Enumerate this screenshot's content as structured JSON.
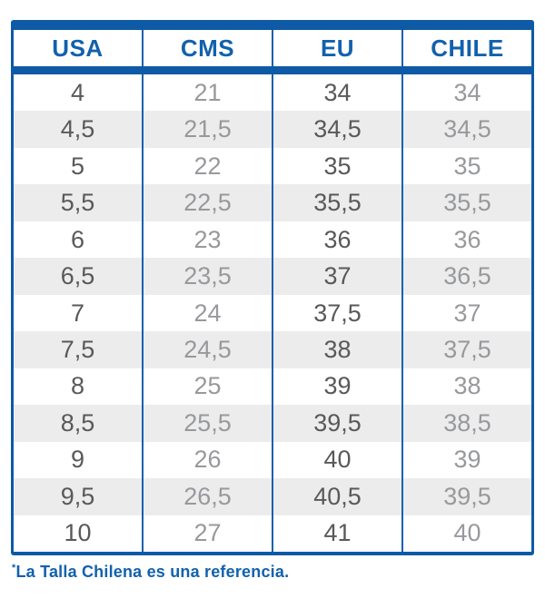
{
  "colors": {
    "accent_blue": "#0E5AA6",
    "header_text_blue": "#1261AC",
    "primary_value_gray": "#58595B",
    "secondary_value_gray": "#97999C",
    "row_stripe": "#ECECEC"
  },
  "table": {
    "headers": [
      "USA",
      "CMS",
      "EU",
      "CHILE"
    ],
    "rows": [
      [
        "4",
        "21",
        "34",
        "34"
      ],
      [
        "4,5",
        "21,5",
        "34,5",
        "34,5"
      ],
      [
        "5",
        "22",
        "35",
        "35"
      ],
      [
        "5,5",
        "22,5",
        "35,5",
        "35,5"
      ],
      [
        "6",
        "23",
        "36",
        "36"
      ],
      [
        "6,5",
        "23,5",
        "37",
        "36,5"
      ],
      [
        "7",
        "24",
        "37,5",
        "37"
      ],
      [
        "7,5",
        "24,5",
        "38",
        "37,5"
      ],
      [
        "8",
        "25",
        "39",
        "38"
      ],
      [
        "8,5",
        "25,5",
        "39,5",
        "38,5"
      ],
      [
        "9",
        "26",
        "40",
        "39"
      ],
      [
        "9,5",
        "26,5",
        "40,5",
        "39,5"
      ],
      [
        "10",
        "27",
        "41",
        "40"
      ]
    ]
  },
  "footnote": {
    "asterisk": "*",
    "text": "La Talla Chilena es una referencia."
  }
}
